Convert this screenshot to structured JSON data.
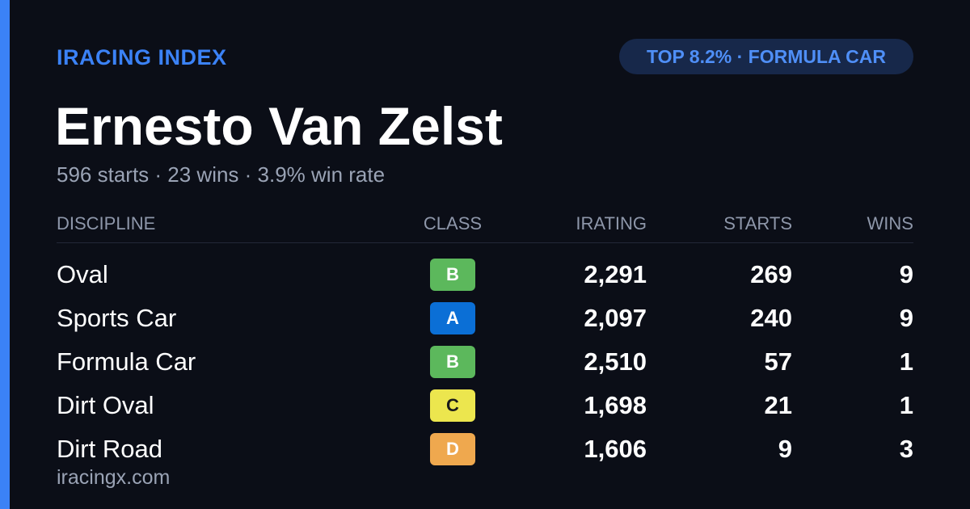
{
  "header": {
    "brand": "IRACING INDEX",
    "badge": "TOP 8.2% · FORMULA CAR",
    "name": "Ernesto Van Zelst",
    "summary": "596 starts · 23 wins · 3.9% win rate"
  },
  "table": {
    "columns": [
      "DISCIPLINE",
      "CLASS",
      "IRATING",
      "STARTS",
      "WINS"
    ],
    "rows": [
      {
        "discipline": "Oval",
        "class": "B",
        "class_color": "#5cb85c",
        "class_text_color": "#ffffff",
        "irating": "2,291",
        "starts": "269",
        "wins": "9"
      },
      {
        "discipline": "Sports Car",
        "class": "A",
        "class_color": "#0b6fd6",
        "class_text_color": "#ffffff",
        "irating": "2,097",
        "starts": "240",
        "wins": "9"
      },
      {
        "discipline": "Formula Car",
        "class": "B",
        "class_color": "#5cb85c",
        "class_text_color": "#ffffff",
        "irating": "2,510",
        "starts": "57",
        "wins": "1"
      },
      {
        "discipline": "Dirt Oval",
        "class": "C",
        "class_color": "#ece64e",
        "class_text_color": "#1a1a1a",
        "irating": "1,698",
        "starts": "21",
        "wins": "1"
      },
      {
        "discipline": "Dirt Road",
        "class": "D",
        "class_color": "#efa84e",
        "class_text_color": "#ffffff",
        "irating": "1,606",
        "starts": "9",
        "wins": "3"
      }
    ]
  },
  "footer": {
    "site": "iracingx.com"
  }
}
